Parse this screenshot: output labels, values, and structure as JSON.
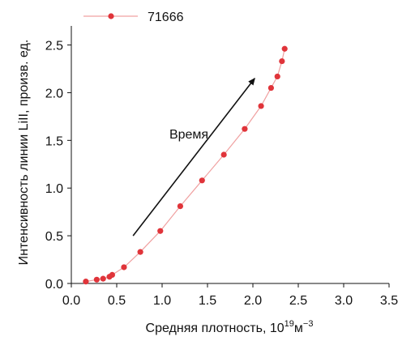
{
  "chart_data": {
    "type": "line",
    "xlabel": "Средняя плотность, 10",
    "xlabel_superscript": "19",
    "xlabel_unit": "м",
    "xlabel_unit_superscript": "−3",
    "ylabel": "Интенсивность линии LiII, произв. ед.",
    "xlim": [
      0.0,
      3.5
    ],
    "ylim": [
      0.0,
      2.7
    ],
    "xticks": [
      0.0,
      0.5,
      1.0,
      1.5,
      2.0,
      2.5,
      3.0,
      3.5
    ],
    "xtick_labels": [
      "0.0",
      "0.5",
      "1.0",
      "1.5",
      "2.0",
      "2.5",
      "3.0",
      "3.5"
    ],
    "yticks": [
      0.0,
      0.5,
      1.0,
      1.5,
      2.0,
      2.5
    ],
    "ytick_labels": [
      "0.0",
      "0.5",
      "1.0",
      "1.5",
      "2.0",
      "2.5"
    ],
    "grid": false,
    "legend_position": "top-left",
    "series": [
      {
        "name": "71666",
        "color": "#e0343a",
        "line_color": "#f0a0a0",
        "x": [
          0.16,
          0.28,
          0.35,
          0.42,
          0.45,
          0.58,
          0.76,
          0.98,
          1.2,
          1.44,
          1.68,
          1.91,
          2.09,
          2.2,
          2.27,
          2.32,
          2.35
        ],
        "y": [
          0.02,
          0.04,
          0.05,
          0.07,
          0.09,
          0.17,
          0.33,
          0.55,
          0.81,
          1.08,
          1.35,
          1.62,
          1.86,
          2.05,
          2.17,
          2.33,
          2.46
        ]
      }
    ],
    "annotations": [
      {
        "text": "Время",
        "x": 1.08,
        "y": 1.52
      }
    ],
    "arrow": {
      "from": [
        0.68,
        0.5
      ],
      "to": [
        2.02,
        2.15
      ]
    }
  }
}
